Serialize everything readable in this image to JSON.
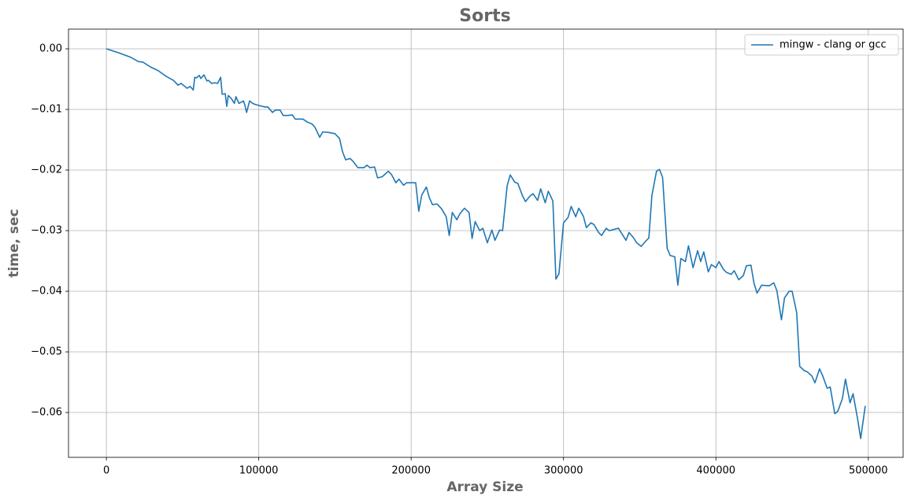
{
  "chart_data": {
    "type": "line",
    "title": "Sorts",
    "xlabel": "Array Size",
    "ylabel": "time, sec",
    "grid": true,
    "legend": "upper right",
    "xlim": [
      -24850,
      522850
    ],
    "ylim": [
      -0.0674,
      0.00325
    ],
    "xticks": [
      0,
      100000,
      200000,
      300000,
      400000,
      500000
    ],
    "yticks": [
      {
        "value": 0,
        "label": "0.00"
      },
      {
        "value": -0.01,
        "label": "−0.01"
      },
      {
        "value": -0.02,
        "label": "−0.02"
      },
      {
        "value": -0.03,
        "label": "−0.03"
      },
      {
        "value": -0.04,
        "label": "−0.04"
      },
      {
        "value": -0.05,
        "label": "−0.05"
      },
      {
        "value": -0.06,
        "label": "−0.06"
      }
    ],
    "x": [
      0,
      8000,
      16000,
      21000,
      24000,
      29000,
      34000,
      39000,
      44000,
      47000,
      49000,
      53000,
      55000,
      57000,
      58000,
      59000,
      61000,
      62000,
      64000,
      66000,
      67000,
      69000,
      71000,
      73000,
      75000,
      76000,
      78000,
      79000,
      80000,
      82000,
      84000,
      85000,
      87000,
      90000,
      91000,
      92000,
      94000,
      96000,
      98000,
      104000,
      106000,
      109000,
      111000,
      114000,
      116000,
      119000,
      122000,
      124000,
      129000,
      132000,
      135000,
      137000,
      140000,
      142000,
      146000,
      150000,
      153000,
      155000,
      157000,
      160000,
      162000,
      165000,
      169000,
      171000,
      173000,
      176000,
      178000,
      181000,
      185000,
      187000,
      190000,
      192000,
      195000,
      197000,
      203000,
      205000,
      207000,
      210000,
      212000,
      214000,
      217000,
      220000,
      223000,
      225000,
      227000,
      230000,
      232000,
      235000,
      238000,
      240000,
      242000,
      245000,
      247000,
      250000,
      253000,
      255000,
      258000,
      260000,
      263000,
      265000,
      268000,
      270000,
      273000,
      275000,
      278000,
      280000,
      283000,
      285000,
      288000,
      290000,
      293000,
      295000,
      297000,
      300000,
      303000,
      305000,
      308000,
      310000,
      313000,
      315000,
      318000,
      320000,
      323000,
      325000,
      328000,
      330000,
      336000,
      338000,
      341000,
      343000,
      346000,
      348000,
      351000,
      354000,
      356000,
      358000,
      361000,
      363000,
      365000,
      368000,
      370000,
      373000,
      375000,
      377000,
      380000,
      382000,
      385000,
      388000,
      390000,
      392000,
      395000,
      397000,
      400000,
      402000,
      405000,
      407000,
      410000,
      412000,
      415000,
      418000,
      420000,
      423000,
      425000,
      427000,
      430000,
      435000,
      438000,
      440000,
      443000,
      445000,
      448000,
      450000,
      453000,
      455000,
      458000,
      460000,
      463000,
      465000,
      468000,
      470000,
      473000,
      475000,
      478000,
      480000,
      483000,
      485000,
      488000,
      490000,
      493000,
      495000,
      498000
    ],
    "series": [
      {
        "name": "mingw - clang or gcc",
        "color": "#1f77b4",
        "values": [
          0,
          -0.00065,
          -0.0014,
          -0.0021,
          -0.0022,
          -0.003,
          -0.0036,
          -0.0045,
          -0.0052,
          -0.006,
          -0.0057,
          -0.0065,
          -0.0062,
          -0.0068,
          -0.0047,
          -0.0048,
          -0.0044,
          -0.0049,
          -0.0043,
          -0.0053,
          -0.0052,
          -0.0057,
          -0.0056,
          -0.0057,
          -0.0047,
          -0.0075,
          -0.0074,
          -0.0095,
          -0.0077,
          -0.0082,
          -0.009,
          -0.0079,
          -0.009,
          -0.0086,
          -0.0094,
          -0.0105,
          -0.0086,
          -0.009,
          -0.0092,
          -0.0096,
          -0.0096,
          -0.0105,
          -0.0101,
          -0.0101,
          -0.011,
          -0.011,
          -0.0109,
          -0.0116,
          -0.0116,
          -0.0121,
          -0.0124,
          -0.013,
          -0.0146,
          -0.0137,
          -0.0138,
          -0.014,
          -0.0148,
          -0.017,
          -0.0183,
          -0.0181,
          -0.0186,
          -0.0196,
          -0.0196,
          -0.0192,
          -0.0196,
          -0.0195,
          -0.0213,
          -0.0211,
          -0.0202,
          -0.0207,
          -0.0221,
          -0.0215,
          -0.0225,
          -0.0221,
          -0.0221,
          -0.0268,
          -0.0241,
          -0.0228,
          -0.0246,
          -0.0257,
          -0.0256,
          -0.0264,
          -0.0277,
          -0.0308,
          -0.027,
          -0.0282,
          -0.0272,
          -0.0263,
          -0.027,
          -0.0313,
          -0.0285,
          -0.03,
          -0.0296,
          -0.032,
          -0.0299,
          -0.0316,
          -0.0299,
          -0.03,
          -0.0226,
          -0.0208,
          -0.022,
          -0.0222,
          -0.0242,
          -0.0252,
          -0.0243,
          -0.0239,
          -0.025,
          -0.0231,
          -0.0254,
          -0.0235,
          -0.0251,
          -0.038,
          -0.0371,
          -0.0287,
          -0.0278,
          -0.026,
          -0.0277,
          -0.0263,
          -0.0276,
          -0.0295,
          -0.0287,
          -0.029,
          -0.0303,
          -0.0308,
          -0.0296,
          -0.03,
          -0.0296,
          -0.0304,
          -0.0316,
          -0.0303,
          -0.0312,
          -0.032,
          -0.0326,
          -0.0317,
          -0.0312,
          -0.0242,
          -0.0202,
          -0.0199,
          -0.0212,
          -0.0329,
          -0.0341,
          -0.0343,
          -0.039,
          -0.0346,
          -0.0351,
          -0.0325,
          -0.0361,
          -0.0333,
          -0.0351,
          -0.0335,
          -0.0368,
          -0.0356,
          -0.0361,
          -0.0351,
          -0.0364,
          -0.0369,
          -0.0372,
          -0.0366,
          -0.0381,
          -0.0374,
          -0.0358,
          -0.0357,
          -0.0387,
          -0.0403,
          -0.039,
          -0.0391,
          -0.0386,
          -0.0399,
          -0.0447,
          -0.0411,
          -0.04,
          -0.04,
          -0.0435,
          -0.0524,
          -0.0531,
          -0.0533,
          -0.054,
          -0.0551,
          -0.0528,
          -0.0539,
          -0.056,
          -0.0558,
          -0.0602,
          -0.0598,
          -0.0577,
          -0.0545,
          -0.0584,
          -0.0569,
          -0.0611,
          -0.0643,
          -0.0589
        ]
      }
    ]
  }
}
